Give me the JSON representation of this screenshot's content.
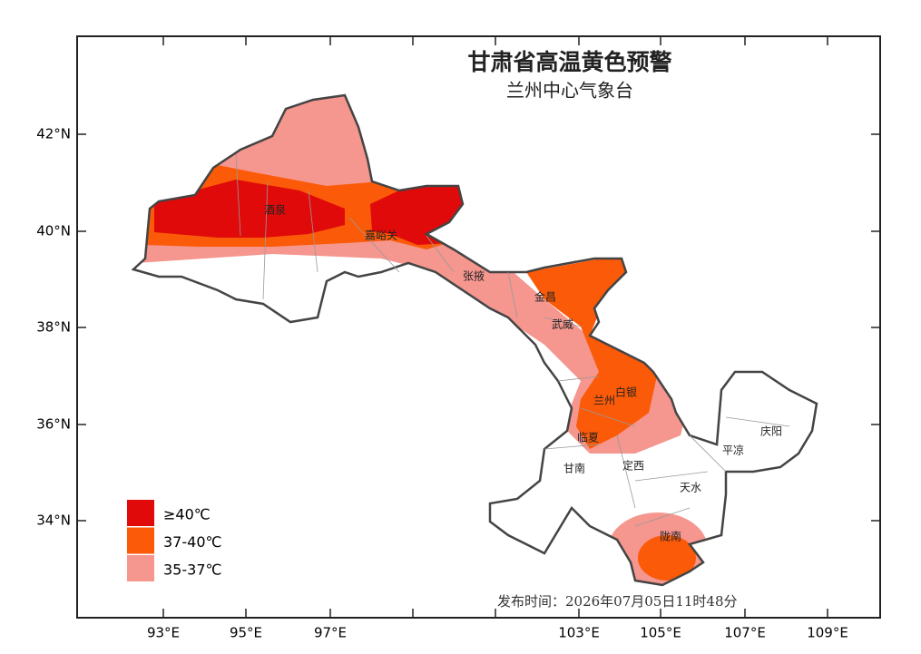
{
  "header": {
    "title": "甘肃省高温黄色预警",
    "subtitle": "兰州中心气象台"
  },
  "x_axis": {
    "ticks": [
      "93°E",
      "95°E",
      "97°E",
      "103°E",
      "105°E",
      "107°E",
      "109°E"
    ]
  },
  "y_axis": {
    "ticks": [
      "42°N",
      "40°N",
      "38°N",
      "36°N",
      "34°N"
    ]
  },
  "cities": [
    "酒泉",
    "嘉峪关",
    "张掖",
    "金昌",
    "武威",
    "兰州",
    "白银",
    "临夏",
    "甘南",
    "定西",
    "天水",
    "平凉",
    "庆阳",
    "陇南"
  ],
  "legend": {
    "items": [
      {
        "label": "≥40℃",
        "color": "#e00a0a"
      },
      {
        "label": "37-40℃",
        "color": "#fb5a08"
      },
      {
        "label": "35-37℃",
        "color": "#f5968f"
      }
    ]
  },
  "footer": {
    "publish_time": "发布时间：2026年07月05日11时48分"
  }
}
